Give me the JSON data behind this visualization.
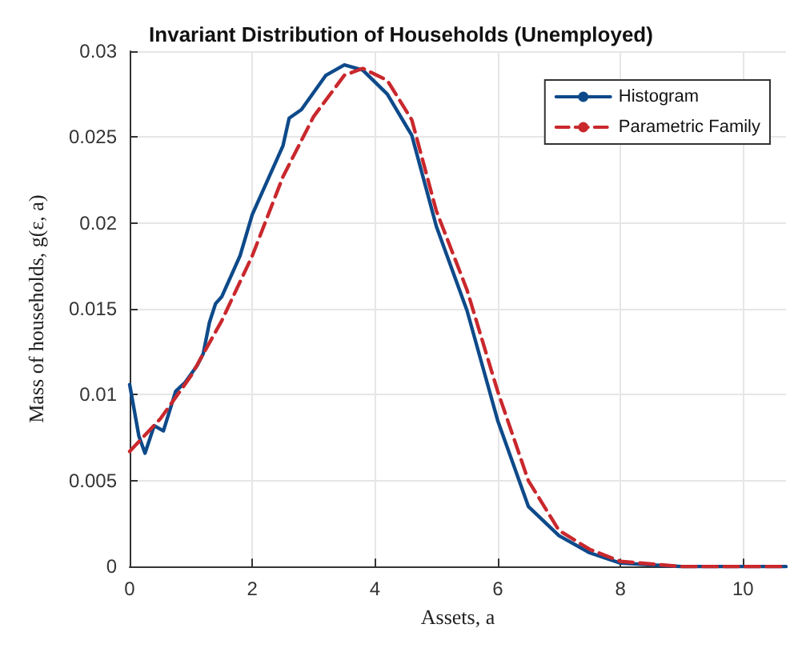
{
  "chart_data": {
    "type": "line",
    "title": "Invariant Distribution of Households (Unemployed)",
    "xlabel": "Assets, a",
    "ylabel": "Mass of households, g(ε, a)",
    "xlim": [
      0,
      10.7
    ],
    "xticks": [
      0,
      2,
      4,
      6,
      8,
      10
    ],
    "ylim": [
      0,
      0.03
    ],
    "yticks": [
      0,
      0.005,
      0.01,
      0.015,
      0.02,
      0.025,
      0.03
    ],
    "grid": true,
    "legend": "top right",
    "marker": "none",
    "series": [
      {
        "name": "Histogram",
        "color": "#0e4a8a",
        "line_style": "solid",
        "x": [
          0,
          0.15,
          0.25,
          0.4,
          0.55,
          0.75,
          0.9,
          1.1,
          1.2,
          1.3,
          1.4,
          1.5,
          1.8,
          2,
          2.5,
          2.6,
          2.8,
          3.2,
          3.5,
          3.8,
          4.2,
          4.6,
          5,
          5.5,
          6,
          6.5,
          7,
          7.5,
          8,
          9,
          10.7
        ],
        "values": [
          0.0106,
          0.0076,
          0.0066,
          0.0082,
          0.0079,
          0.0102,
          0.0107,
          0.0117,
          0.0124,
          0.0142,
          0.0153,
          0.0157,
          0.0181,
          0.0205,
          0.0245,
          0.0261,
          0.0266,
          0.0286,
          0.0292,
          0.0289,
          0.0275,
          0.0251,
          0.0198,
          0.0149,
          0.0085,
          0.0035,
          0.0018,
          0.0008,
          0.0002,
          0,
          0
        ]
      },
      {
        "name": "Parametric Family",
        "color": "#c9282d",
        "line_style": "dashed",
        "x": [
          0,
          0.5,
          1,
          1.5,
          2,
          2.5,
          3,
          3.5,
          3.8,
          4.2,
          4.6,
          5,
          5.5,
          6,
          6.5,
          7,
          7.5,
          8,
          9,
          10.7
        ],
        "values": [
          0.0067,
          0.0086,
          0.0111,
          0.0143,
          0.0181,
          0.0227,
          0.0262,
          0.0286,
          0.029,
          0.0283,
          0.026,
          0.0207,
          0.0161,
          0.0102,
          0.005,
          0.0021,
          0.001,
          0.0003,
          0,
          0
        ]
      }
    ]
  }
}
